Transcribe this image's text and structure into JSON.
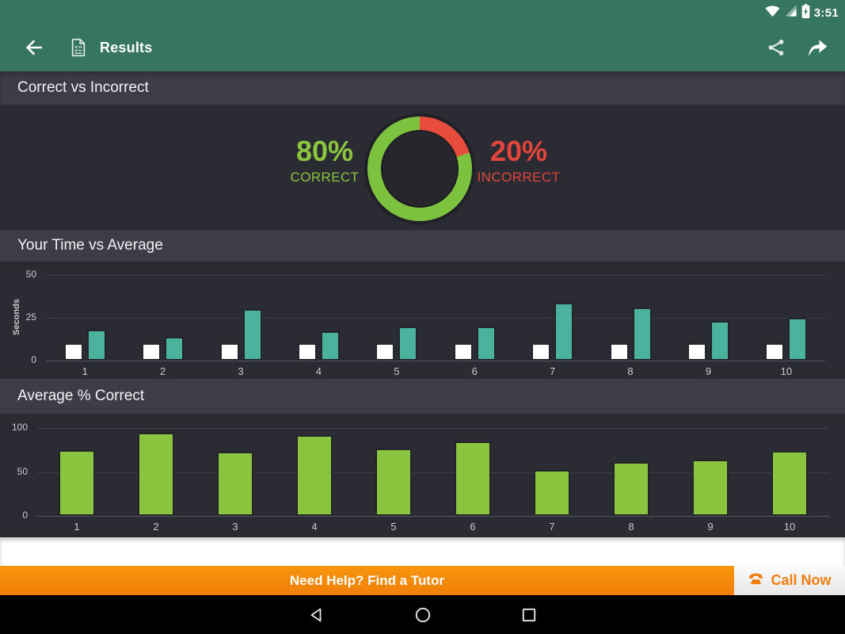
{
  "colors": {
    "app_bar_green": "#367560",
    "section_header_bg": "#3D3D49",
    "content_bg": "#2B2B33",
    "correct_green": "#7CC23F",
    "incorrect_red": "#E74C3C",
    "your_time_white": "#FFFFFF",
    "average_teal": "#4BB39D",
    "percent_bar_green": "#8BC53F",
    "banner_orange": "#F68A0C",
    "call_now_orange": "#F07D10"
  },
  "status_bar": {
    "time": "3:51",
    "icons": [
      "wifi-icon",
      "cell-signal-icon",
      "battery-charging-icon"
    ]
  },
  "app_bar": {
    "title": "Results",
    "icons": [
      "back-arrow-icon",
      "document-icon",
      "share-icon",
      "forward-icon"
    ]
  },
  "sections": {
    "correct_vs_incorrect": {
      "header": "Correct vs Incorrect",
      "correct_pct": "80%",
      "correct_label": "CORRECT",
      "incorrect_pct": "20%",
      "incorrect_label": "INCORRECT"
    },
    "time_vs_average": {
      "header": "Your Time vs Average",
      "ylabel": "Seconds"
    },
    "average_correct": {
      "header": "Average % Correct"
    }
  },
  "banner": {
    "text": "Need Help? Find a Tutor",
    "call_now_label": "Call Now"
  },
  "nav_bar": {
    "icons": [
      "back-triangle-icon",
      "home-circle-icon",
      "recents-square-icon"
    ]
  },
  "chart_data": [
    {
      "type": "pie",
      "style": "donut",
      "title": "Correct vs Incorrect",
      "slices": [
        {
          "label": "Correct",
          "value": 80,
          "color": "#7CC23F"
        },
        {
          "label": "Incorrect",
          "value": 20,
          "color": "#E74C3C"
        }
      ]
    },
    {
      "type": "bar",
      "title": "Your Time vs Average",
      "categories": [
        "1",
        "2",
        "3",
        "4",
        "5",
        "6",
        "7",
        "8",
        "9",
        "10"
      ],
      "series": [
        {
          "name": "Your Time",
          "color": "#FFFFFF",
          "values": [
            10,
            10,
            10,
            10,
            10,
            10,
            10,
            10,
            10,
            10
          ]
        },
        {
          "name": "Average",
          "color": "#4BB39D",
          "values": [
            18,
            14,
            30,
            17,
            20,
            20,
            34,
            31,
            23,
            25
          ]
        }
      ],
      "xlabel": "",
      "ylabel": "Seconds",
      "ylim": [
        0,
        50
      ],
      "yticks": [
        0,
        25,
        50
      ],
      "grid": true,
      "legend_position": "none"
    },
    {
      "type": "bar",
      "title": "Average % Correct",
      "categories": [
        "1",
        "2",
        "3",
        "4",
        "5",
        "6",
        "7",
        "8",
        "9",
        "10"
      ],
      "series": [
        {
          "name": "Average % Correct",
          "color": "#8BC53F",
          "values": [
            75,
            95,
            73,
            92,
            77,
            85,
            52,
            61,
            64,
            74
          ]
        }
      ],
      "xlabel": "",
      "ylabel": "",
      "ylim": [
        0,
        100
      ],
      "yticks": [
        0,
        50,
        100
      ],
      "grid": true,
      "legend_position": "none"
    }
  ]
}
